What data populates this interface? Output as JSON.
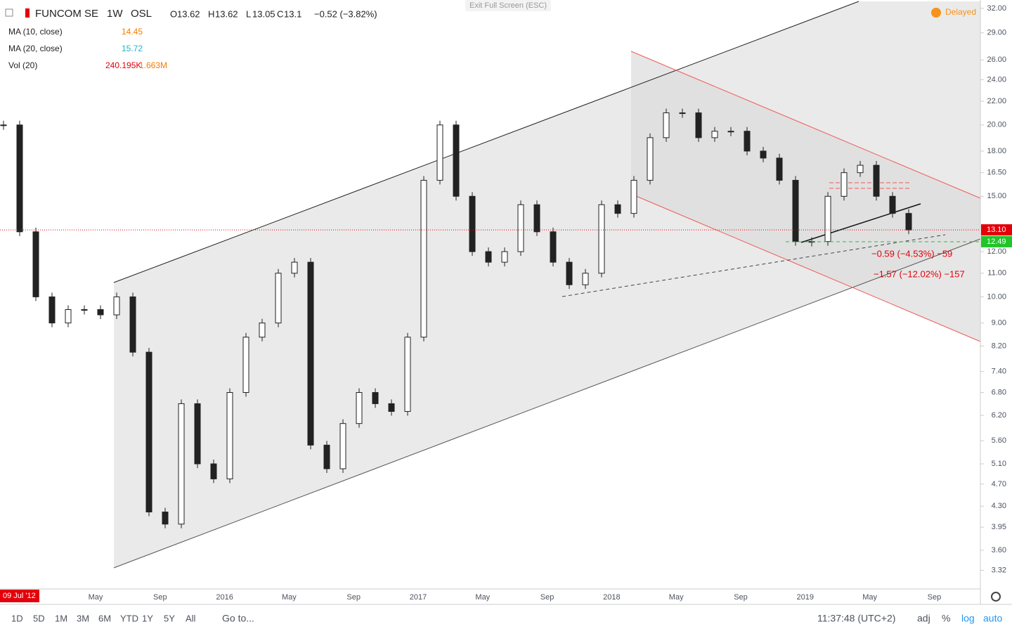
{
  "header": {
    "symbol": "FUNCOM SE",
    "interval": "1W",
    "exchange": "OSL",
    "open_label": "O",
    "open": 13.62,
    "high_label": "H",
    "high": 13.62,
    "low_label": "L",
    "low": 13.05,
    "close_label": "C",
    "close": 13.1,
    "change": "−0.52 (−3.82%)",
    "delayed": "Delayed",
    "exit_fullscreen": "Exit Full Screen (ESC)",
    "indicators": [
      {
        "name": "MA (10, close)",
        "value": 14.45
      },
      {
        "name": "MA (20, close)",
        "value": 15.72
      },
      {
        "name": "Vol (20)",
        "value": "240.195K",
        "value2": "1.663M"
      }
    ]
  },
  "measures": [
    "−0.59 (−4.53%) −59",
    "−1.57 (−12.02%) −157"
  ],
  "cursor_date": "09 Jul '12",
  "toolbar": {
    "ranges": [
      "1D",
      "5D",
      "1M",
      "3M",
      "6M",
      "YTD",
      "1Y",
      "5Y",
      "All"
    ],
    "goto": "Go to...",
    "time": "11:37:48 (UTC+2)",
    "options": [
      "adj",
      "%",
      "log",
      "auto"
    ]
  },
  "chart_data": {
    "type": "candlestick",
    "log_scale": true,
    "xticks": [
      "May",
      "Sep",
      "2016",
      "May",
      "Sep",
      "2017",
      "May",
      "Sep",
      "2018",
      "May",
      "Sep",
      "2019",
      "May",
      "Sep"
    ],
    "values": [
      20,
      13,
      10,
      9,
      9.5,
      9.5,
      9.3,
      10,
      8,
      4.2,
      4,
      6.5,
      5.1,
      4.8,
      6.8,
      8.5,
      9,
      11,
      11.5,
      5.5,
      5,
      6,
      6.8,
      6.5,
      6.3,
      8.5,
      16,
      20,
      15,
      12,
      11.5,
      12,
      14.5,
      13,
      11.5,
      10.5,
      11,
      14.5,
      14,
      16,
      19,
      21,
      21,
      19,
      19.5,
      19.5,
      18,
      17.5,
      16,
      12.5,
      12.5,
      15,
      16.5,
      17,
      15,
      14,
      13.1
    ],
    "ylim": [
      3.08,
      33.1
    ],
    "yticks": [
      {
        "value": 32,
        "label": "32.00"
      },
      {
        "value": 29,
        "label": "29.00"
      },
      {
        "value": 26,
        "label": "26.00"
      },
      {
        "value": 24,
        "label": "24.00"
      },
      {
        "value": 22,
        "label": "22.00"
      },
      {
        "value": 20,
        "label": "20.00"
      },
      {
        "value": 18,
        "label": "18.00"
      },
      {
        "value": 16.5,
        "label": "16.50"
      },
      {
        "value": 15,
        "label": "15.00"
      },
      {
        "value": 12,
        "label": "12.00"
      },
      {
        "value": 11,
        "label": "11.00"
      },
      {
        "value": 10,
        "label": "10.00"
      },
      {
        "value": 9,
        "label": "9.00"
      },
      {
        "value": 8.2,
        "label": "8.20"
      },
      {
        "value": 7.4,
        "label": "7.40"
      },
      {
        "value": 6.8,
        "label": "6.80"
      },
      {
        "value": 6.2,
        "label": "6.20"
      },
      {
        "value": 5.6,
        "label": "5.60"
      },
      {
        "value": 5.1,
        "label": "5.10"
      },
      {
        "value": 4.7,
        "label": "4.70"
      },
      {
        "value": 4.3,
        "label": "4.30"
      },
      3.95,
      {
        "value": 3.6,
        "label": "3.60"
      },
      3.32
    ],
    "last_price": {
      "value": 13.1,
      "label": "13.10"
    },
    "level": 12.49,
    "price_color": "#e3000b",
    "level_color": "#22c42a",
    "candle_color": "#222"
  }
}
